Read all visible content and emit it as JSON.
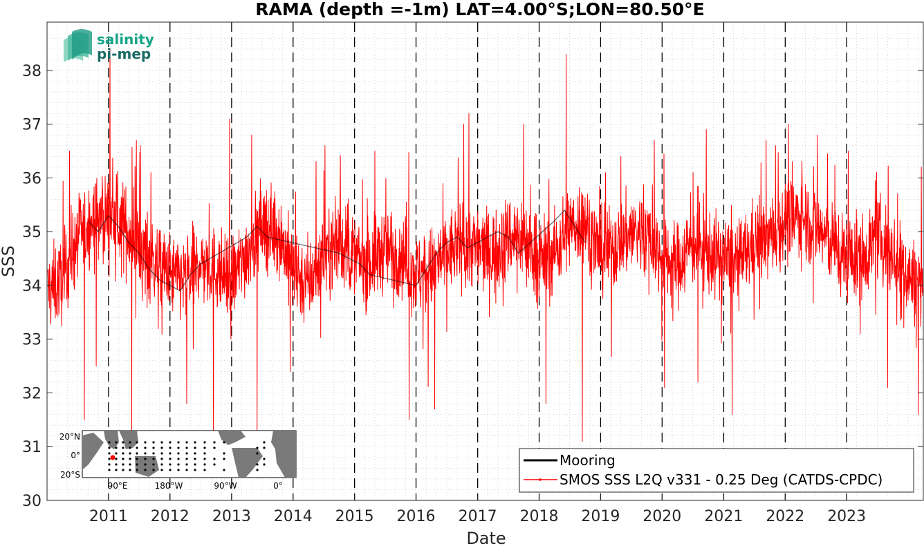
{
  "chart_data": {
    "type": "line",
    "title": "RAMA (depth =-1m) LAT=4.00°S;LON=80.50°E",
    "xlabel": "Date",
    "ylabel": "SSS",
    "xlim": [
      "2010-01-01",
      "2024-03-31"
    ],
    "ylim": [
      30,
      38.9
    ],
    "y_ticks": [
      30,
      31,
      32,
      33,
      34,
      35,
      36,
      37,
      38
    ],
    "x_ticks": [
      "2011",
      "2012",
      "2013",
      "2014",
      "2015",
      "2016",
      "2017",
      "2018",
      "2019",
      "2020",
      "2021",
      "2022",
      "2023"
    ],
    "grid": "dotted minor grid",
    "year_boundaries": "dashed vertical lines at each Jan 1",
    "legend_position": "bottom-right",
    "series": [
      {
        "name": "Mooring",
        "color": "#000000",
        "sparse": true,
        "x": [
          "2010-09-01",
          "2010-11-01",
          "2011-01-01",
          "2011-03-01",
          "2011-05-01",
          "2011-07-01",
          "2011-09-01",
          "2011-11-01",
          "2012-01-01",
          "2012-03-01",
          "2012-05-01",
          "2012-07-01",
          "2013-04-01",
          "2013-06-01",
          "2013-08-01",
          "2014-10-01",
          "2014-12-01",
          "2015-02-01",
          "2015-04-01",
          "2016-01-01",
          "2016-03-01",
          "2016-05-01",
          "2016-07-01",
          "2016-09-01",
          "2016-11-01",
          "2017-01-01",
          "2017-03-01",
          "2017-05-01",
          "2017-07-01",
          "2017-09-01",
          "2018-04-01",
          "2018-06-01",
          "2018-08-01",
          "2018-10-01"
        ],
        "values": [
          35.2,
          35.0,
          35.3,
          35.1,
          34.8,
          34.6,
          34.3,
          34.1,
          34.0,
          33.9,
          34.2,
          34.4,
          34.9,
          35.1,
          34.9,
          34.6,
          34.5,
          34.4,
          34.2,
          34.0,
          34.3,
          34.6,
          34.8,
          34.9,
          34.7,
          34.8,
          34.9,
          35.0,
          34.9,
          34.6,
          35.2,
          35.4,
          35.1,
          34.8
        ]
      },
      {
        "name": "SMOS SSS L2Q v331 - 0.25 Deg (CATDS-CPDC)",
        "color": "#ff0000",
        "x_range": [
          "2010-01-05",
          "2024-03-28"
        ],
        "sampling": "approximately daily",
        "typical_range": [
          33.3,
          36.2
        ],
        "extremes": {
          "max": 38.4,
          "max_date": "2011-01-10",
          "min": 31.1,
          "min_date": "2018-09-15"
        },
        "baseline_monthly": {
          "x": [
            "2010-01",
            "2010-04",
            "2010-07",
            "2010-10",
            "2011-01",
            "2011-04",
            "2011-07",
            "2011-10",
            "2012-01",
            "2012-04",
            "2012-07",
            "2012-10",
            "2013-01",
            "2013-04",
            "2013-07",
            "2013-10",
            "2014-01",
            "2014-04",
            "2014-07",
            "2014-10",
            "2015-01",
            "2015-04",
            "2015-07",
            "2015-10",
            "2016-01",
            "2016-04",
            "2016-07",
            "2016-10",
            "2017-01",
            "2017-04",
            "2017-07",
            "2017-10",
            "2018-01",
            "2018-04",
            "2018-07",
            "2018-10",
            "2019-01",
            "2019-04",
            "2019-07",
            "2019-10",
            "2020-01",
            "2020-04",
            "2020-07",
            "2020-10",
            "2021-01",
            "2021-04",
            "2021-07",
            "2021-10",
            "2022-01",
            "2022-04",
            "2022-07",
            "2022-10",
            "2023-01",
            "2023-04",
            "2023-07",
            "2023-10",
            "2024-01",
            "2024-03"
          ],
          "values": [
            33.9,
            34.1,
            34.9,
            35.2,
            35.3,
            35.1,
            34.7,
            34.4,
            34.2,
            34.1,
            34.4,
            34.3,
            34.1,
            34.6,
            35.1,
            35.0,
            34.3,
            34.0,
            34.6,
            34.8,
            34.5,
            34.4,
            34.7,
            34.6,
            34.2,
            34.3,
            34.6,
            34.8,
            34.7,
            34.6,
            34.9,
            34.9,
            34.5,
            34.6,
            35.1,
            35.2,
            34.6,
            34.7,
            35.0,
            35.0,
            34.5,
            34.4,
            34.8,
            34.6,
            34.5,
            34.4,
            34.8,
            34.9,
            35.2,
            35.3,
            35.1,
            34.8,
            34.5,
            34.5,
            34.9,
            34.6,
            34.2,
            34.0
          ]
        },
        "spikes": [
          {
            "x": "2010-05-15",
            "value": 36.5
          },
          {
            "x": "2010-08-10",
            "value": 31.5
          },
          {
            "x": "2010-10-20",
            "value": 32.5
          },
          {
            "x": "2011-01-10",
            "value": 38.4
          },
          {
            "x": "2011-05-20",
            "value": 31.2
          },
          {
            "x": "2011-06-15",
            "value": 36.7
          },
          {
            "x": "2011-09-10",
            "value": 36.1
          },
          {
            "x": "2012-04-10",
            "value": 31.8
          },
          {
            "x": "2012-09-15",
            "value": 31.3
          },
          {
            "x": "2012-12-20",
            "value": 37.1
          },
          {
            "x": "2013-06-01",
            "value": 31.3
          },
          {
            "x": "2013-05-01",
            "value": 36.8
          },
          {
            "x": "2013-12-15",
            "value": 32.4
          },
          {
            "x": "2014-07-10",
            "value": 36.6
          },
          {
            "x": "2015-05-01",
            "value": 36.5
          },
          {
            "x": "2015-11-20",
            "value": 31.5
          },
          {
            "x": "2016-04-20",
            "value": 31.7
          },
          {
            "x": "2016-10-10",
            "value": 37.0
          },
          {
            "x": "2016-11-10",
            "value": 37.2
          },
          {
            "x": "2017-10-01",
            "value": 37.0
          },
          {
            "x": "2018-02-10",
            "value": 31.8
          },
          {
            "x": "2018-06-10",
            "value": 38.3
          },
          {
            "x": "2018-09-15",
            "value": 31.1
          },
          {
            "x": "2019-05-01",
            "value": 36.4
          },
          {
            "x": "2019-11-15",
            "value": 36.7
          },
          {
            "x": "2020-01-15",
            "value": 32.1
          },
          {
            "x": "2020-08-01",
            "value": 32.2
          },
          {
            "x": "2020-09-20",
            "value": 36.9
          },
          {
            "x": "2021-02-20",
            "value": 31.6
          },
          {
            "x": "2021-09-10",
            "value": 36.7
          },
          {
            "x": "2022-01-20",
            "value": 37.0
          },
          {
            "x": "2022-07-10",
            "value": 36.8
          },
          {
            "x": "2023-01-10",
            "value": 36.5
          },
          {
            "x": "2023-09-01",
            "value": 32.1
          },
          {
            "x": "2024-03-01",
            "value": 31.6
          },
          {
            "x": "2024-03-20",
            "value": 36.2
          }
        ]
      }
    ]
  },
  "logo": {
    "line1": "salinity",
    "line2": "pi-mep"
  },
  "inset_map": {
    "lat_labels": [
      "20°N",
      "0°",
      "20°S"
    ],
    "lon_labels": [
      "90°E",
      "180°W",
      "90°W",
      "0°"
    ],
    "marker_color": "#ff0000"
  }
}
